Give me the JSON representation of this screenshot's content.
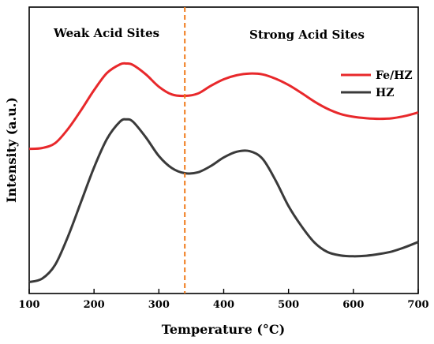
{
  "chart_data": {
    "type": "line",
    "title": "",
    "xlabel": "Temperature (°C)",
    "ylabel": "Intensity (a.u.)",
    "xlim": [
      100,
      700
    ],
    "x_ticks": [
      "100",
      "200",
      "300",
      "400",
      "500",
      "600",
      "700"
    ],
    "y_ticks_shown": false,
    "grid": false,
    "legend_position": "top-right",
    "divider": {
      "x": 340,
      "style": "dashed",
      "color": "#f07a1a"
    },
    "annotations": {
      "left": "Weak Acid Sites",
      "right": "Strong Acid Sites"
    },
    "series": [
      {
        "name": "Fe/HZ",
        "color": "#e8282b",
        "x": [
          100,
          120,
          140,
          160,
          180,
          200,
          220,
          240,
          250,
          260,
          280,
          300,
          320,
          340,
          360,
          380,
          400,
          420,
          440,
          460,
          480,
          500,
          520,
          540,
          560,
          580,
          600,
          620,
          640,
          660,
          680,
          700
        ],
        "y": [
          0.505,
          0.508,
          0.525,
          0.575,
          0.64,
          0.71,
          0.77,
          0.8,
          0.803,
          0.798,
          0.765,
          0.722,
          0.695,
          0.69,
          0.698,
          0.725,
          0.748,
          0.762,
          0.768,
          0.765,
          0.75,
          0.728,
          0.7,
          0.67,
          0.645,
          0.627,
          0.617,
          0.612,
          0.61,
          0.612,
          0.62,
          0.632
        ]
      },
      {
        "name": "HZ",
        "color": "#3a3a3a",
        "x": [
          100,
          120,
          140,
          160,
          180,
          200,
          220,
          240,
          250,
          260,
          280,
          300,
          320,
          340,
          360,
          380,
          400,
          420,
          440,
          460,
          480,
          500,
          520,
          540,
          560,
          580,
          600,
          620,
          640,
          660,
          680,
          700
        ],
        "y": [
          0.04,
          0.052,
          0.1,
          0.2,
          0.32,
          0.44,
          0.54,
          0.6,
          0.608,
          0.6,
          0.545,
          0.48,
          0.438,
          0.42,
          0.423,
          0.445,
          0.475,
          0.495,
          0.497,
          0.47,
          0.395,
          0.305,
          0.235,
          0.178,
          0.145,
          0.133,
          0.13,
          0.132,
          0.138,
          0.147,
          0.162,
          0.18
        ]
      }
    ]
  }
}
